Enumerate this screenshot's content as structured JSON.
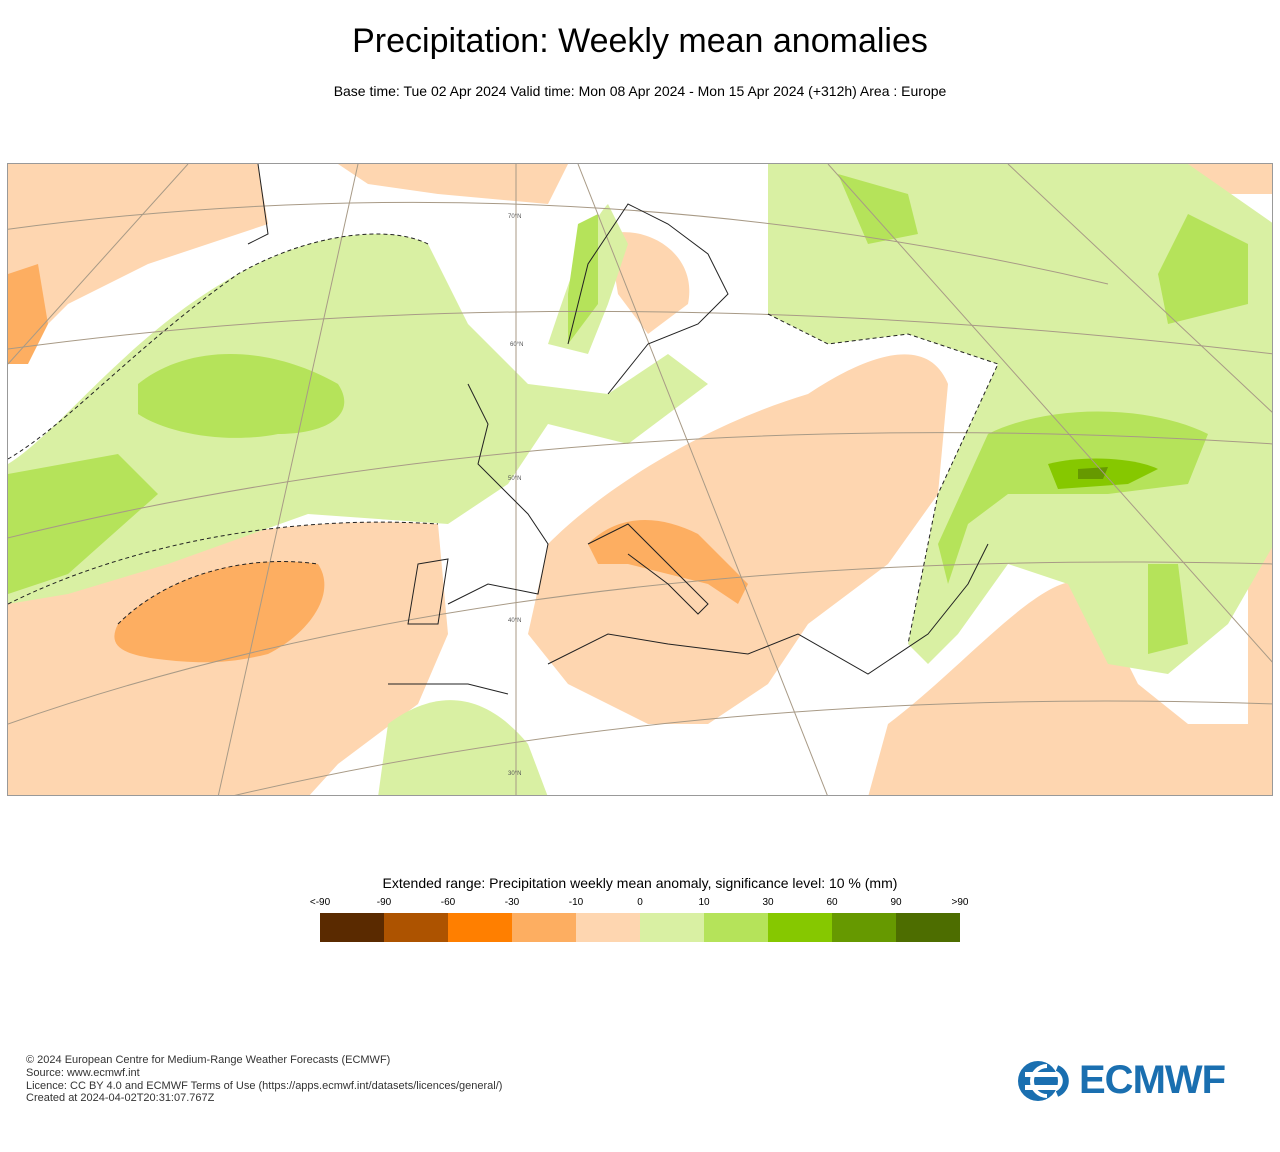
{
  "header": {
    "title": "Precipitation: Weekly mean anomalies",
    "subtitle": "Base time: Tue 02 Apr 2024 Valid time: Mon 08 Apr 2024 - Mon 15 Apr 2024 (+312h) Area : Europe"
  },
  "map": {
    "area": "Europe",
    "latitude_labels": [
      "70°N",
      "60°N",
      "50°N",
      "40°N",
      "30°N"
    ]
  },
  "legend": {
    "title": "Extended range: Precipitation weekly mean anomaly, significance level: 10 % (mm)",
    "labels": [
      "<-90",
      "-90",
      "-60",
      "-30",
      "-10",
      "0",
      "10",
      "30",
      "60",
      "90",
      ">90"
    ],
    "colors": [
      "#5a2a00",
      "#ad5300",
      "#ff7f00",
      "#fdae61",
      "#fed6b0",
      "#d9f0a3",
      "#b5e35a",
      "#86c800",
      "#669900",
      "#4d6d00"
    ]
  },
  "footer": {
    "copyright": "© 2024 European Centre for Medium-Range Weather Forecasts (ECMWF)",
    "source": "Source: www.ecmwf.int",
    "licence": "Licence: CC BY 4.0 and ECMWF Terms of Use (https://apps.ecmwf.int/datasets/licences/general/)",
    "created": "Created at 2024-04-02T20:31:07.767Z"
  },
  "logo": {
    "text": "ECMWF",
    "color": "#1a6fb0"
  }
}
